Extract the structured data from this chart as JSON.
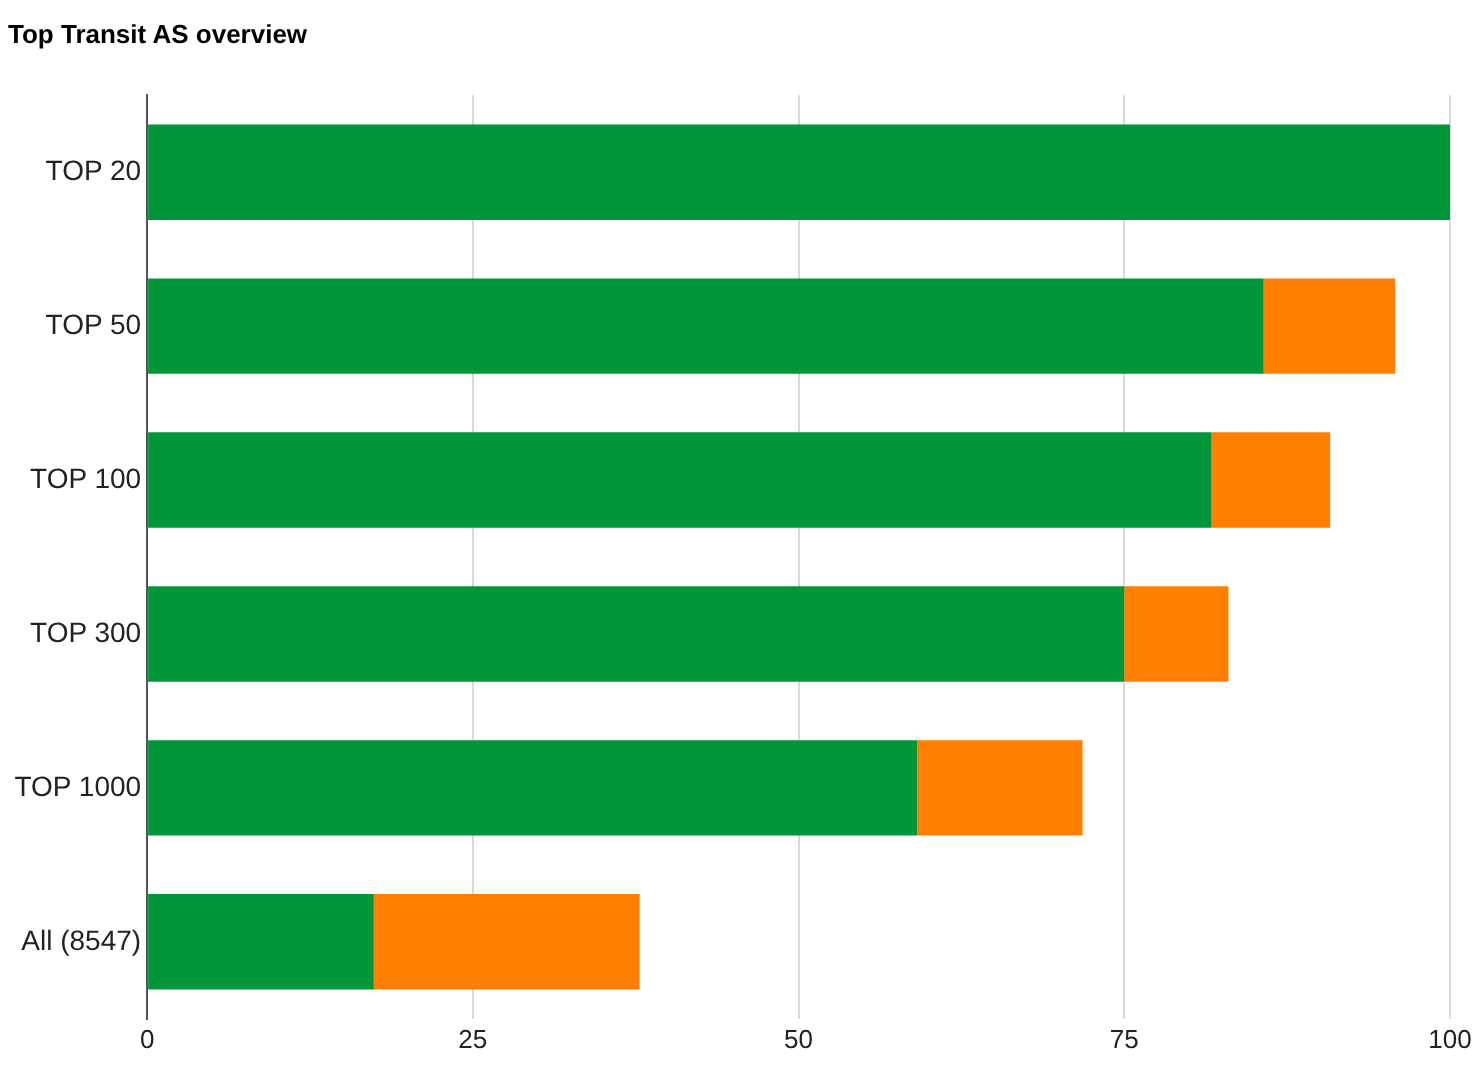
{
  "chart_data": {
    "type": "bar",
    "title": "Top Transit AS overview",
    "orientation": "horizontal",
    "stacked": true,
    "categories": [
      "TOP 20",
      "TOP 50",
      "TOP 100",
      "TOP 300",
      "TOP 1000",
      "All (8547)"
    ],
    "series": [
      {
        "color": "#009639",
        "values": [
          100,
          85.7,
          81.7,
          75,
          59.1,
          17.4
        ]
      },
      {
        "color": "#ff8000",
        "values": [
          0,
          10.1,
          9.1,
          8,
          12.7,
          20.4
        ]
      }
    ],
    "xlim": [
      0,
      100
    ],
    "xticks": [
      0,
      25,
      50,
      75,
      100
    ],
    "grid": "x",
    "legend": false
  }
}
